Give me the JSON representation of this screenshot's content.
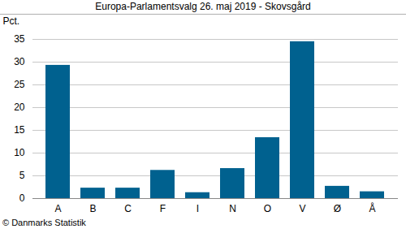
{
  "chart_data": {
    "type": "bar",
    "title": "Europa-Parlamentsvalg 26. maj 2019 - Skovsgård",
    "y_label": "Pct.",
    "caption": "© Danmarks Statistik",
    "categories": [
      "A",
      "B",
      "C",
      "F",
      "I",
      "N",
      "O",
      "V",
      "Ø",
      "Å"
    ],
    "values": [
      29.3,
      2.3,
      2.3,
      6.2,
      1.3,
      6.6,
      13.4,
      34.5,
      2.7,
      1.5
    ],
    "color": "#00618f",
    "ylim": [
      0,
      35
    ],
    "yticks": [
      0,
      5,
      10,
      15,
      20,
      25,
      30,
      35
    ],
    "grid": true
  }
}
